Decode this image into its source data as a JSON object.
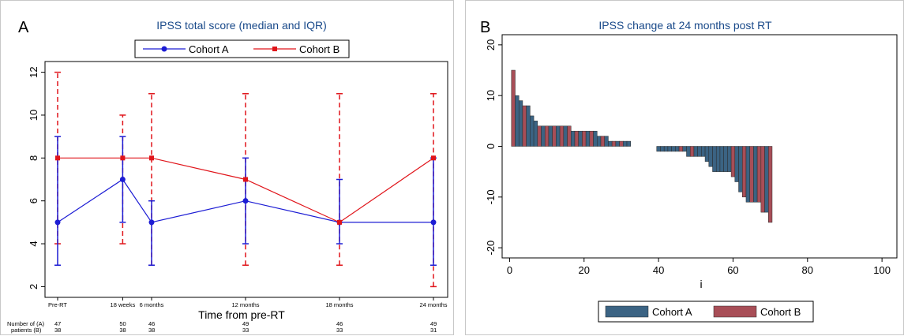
{
  "panels": [
    {
      "letter": "A",
      "chart_data": {
        "type": "line",
        "title": "IPSS total score (median and IQR)",
        "xlabel": "Time from pre-RT",
        "ylabel": "",
        "categories": [
          "Pre-RT",
          "18 weeks",
          "6 months",
          "12 months",
          "18 months",
          "24 months"
        ],
        "x": [
          0,
          18,
          26,
          52,
          78,
          104
        ],
        "ylim": [
          1.5,
          12.5
        ],
        "yticks": [
          2,
          4,
          6,
          8,
          10,
          12
        ],
        "grid": false,
        "legend_position": "top",
        "series": [
          {
            "name": "Cohort A",
            "color": "#1c1cd4",
            "marker": "circle",
            "values": [
              5,
              7,
              5,
              6,
              5,
              5
            ],
            "lower": [
              3,
              5,
              3,
              4,
              4,
              3
            ],
            "upper": [
              9,
              9,
              6,
              8,
              7,
              8
            ],
            "n": [
              47,
              50,
              46,
              49,
              46,
              49
            ]
          },
          {
            "name": "Cohort B",
            "color": "#e0141a",
            "marker": "square",
            "values": [
              8,
              8,
              8,
              7,
              5,
              8
            ],
            "lower": [
              4,
              4,
              3,
              3,
              3,
              2
            ],
            "upper": [
              12,
              10,
              11,
              11,
              11,
              11
            ],
            "n": [
              38,
              38,
              38,
              33,
              33,
              31
            ]
          }
        ],
        "table_label_1": "Number of (A)",
        "table_label_2": "patients (B)"
      }
    },
    {
      "letter": "B",
      "chart_data": {
        "type": "bar",
        "title": "IPSS change at 24 months post RT",
        "xlabel": "i",
        "ylabel": "",
        "xlim": [
          -2,
          104
        ],
        "ylim": [
          -22,
          22
        ],
        "xticks": [
          0,
          20,
          40,
          60,
          80,
          100
        ],
        "yticks": [
          -20,
          -10,
          0,
          10,
          20
        ],
        "grid": false,
        "legend_position": "bottom",
        "series_names": [
          "Cohort A",
          "Cohort B"
        ],
        "colors": [
          "#3b6383",
          "#a84e57"
        ],
        "bars": [
          {
            "i": 1,
            "v": 15,
            "c": 1
          },
          {
            "i": 2,
            "v": 10,
            "c": 0
          },
          {
            "i": 3,
            "v": 9,
            "c": 0
          },
          {
            "i": 4,
            "v": 8,
            "c": 1
          },
          {
            "i": 5,
            "v": 8,
            "c": 0
          },
          {
            "i": 6,
            "v": 6,
            "c": 0
          },
          {
            "i": 7,
            "v": 5,
            "c": 0
          },
          {
            "i": 8,
            "v": 4,
            "c": 1
          },
          {
            "i": 9,
            "v": 4,
            "c": 0
          },
          {
            "i": 10,
            "v": 4,
            "c": 1
          },
          {
            "i": 11,
            "v": 4,
            "c": 0
          },
          {
            "i": 12,
            "v": 4,
            "c": 1
          },
          {
            "i": 13,
            "v": 4,
            "c": 0
          },
          {
            "i": 14,
            "v": 4,
            "c": 1
          },
          {
            "i": 15,
            "v": 4,
            "c": 0
          },
          {
            "i": 16,
            "v": 4,
            "c": 1
          },
          {
            "i": 17,
            "v": 3,
            "c": 0
          },
          {
            "i": 18,
            "v": 3,
            "c": 1
          },
          {
            "i": 19,
            "v": 3,
            "c": 0
          },
          {
            "i": 20,
            "v": 3,
            "c": 1
          },
          {
            "i": 21,
            "v": 3,
            "c": 0
          },
          {
            "i": 22,
            "v": 3,
            "c": 1
          },
          {
            "i": 23,
            "v": 3,
            "c": 0
          },
          {
            "i": 24,
            "v": 2,
            "c": 0
          },
          {
            "i": 25,
            "v": 2,
            "c": 1
          },
          {
            "i": 26,
            "v": 2,
            "c": 0
          },
          {
            "i": 27,
            "v": 1,
            "c": 0
          },
          {
            "i": 28,
            "v": 1,
            "c": 1
          },
          {
            "i": 29,
            "v": 1,
            "c": 0
          },
          {
            "i": 30,
            "v": 1,
            "c": 1
          },
          {
            "i": 31,
            "v": 1,
            "c": 0
          },
          {
            "i": 32,
            "v": 1,
            "c": 0
          },
          {
            "i": 40,
            "v": -1,
            "c": 0
          },
          {
            "i": 41,
            "v": -1,
            "c": 0
          },
          {
            "i": 42,
            "v": -1,
            "c": 0
          },
          {
            "i": 43,
            "v": -1,
            "c": 0
          },
          {
            "i": 44,
            "v": -1,
            "c": 0
          },
          {
            "i": 45,
            "v": -1,
            "c": 0
          },
          {
            "i": 46,
            "v": -1,
            "c": 1
          },
          {
            "i": 47,
            "v": -1,
            "c": 0
          },
          {
            "i": 48,
            "v": -2,
            "c": 0
          },
          {
            "i": 49,
            "v": -2,
            "c": 1
          },
          {
            "i": 50,
            "v": -2,
            "c": 0
          },
          {
            "i": 51,
            "v": -2,
            "c": 0
          },
          {
            "i": 52,
            "v": -2,
            "c": 0
          },
          {
            "i": 53,
            "v": -3,
            "c": 0
          },
          {
            "i": 54,
            "v": -4,
            "c": 0
          },
          {
            "i": 55,
            "v": -5,
            "c": 0
          },
          {
            "i": 56,
            "v": -5,
            "c": 0
          },
          {
            "i": 57,
            "v": -5,
            "c": 0
          },
          {
            "i": 58,
            "v": -5,
            "c": 0
          },
          {
            "i": 59,
            "v": -5,
            "c": 0
          },
          {
            "i": 60,
            "v": -6,
            "c": 1
          },
          {
            "i": 61,
            "v": -7,
            "c": 0
          },
          {
            "i": 62,
            "v": -9,
            "c": 0
          },
          {
            "i": 63,
            "v": -10,
            "c": 1
          },
          {
            "i": 64,
            "v": -11,
            "c": 0
          },
          {
            "i": 65,
            "v": -11,
            "c": 1
          },
          {
            "i": 66,
            "v": -11,
            "c": 0
          },
          {
            "i": 67,
            "v": -11,
            "c": 1
          },
          {
            "i": 68,
            "v": -13,
            "c": 1
          },
          {
            "i": 69,
            "v": -13,
            "c": 0
          },
          {
            "i": 70,
            "v": -15,
            "c": 1
          }
        ]
      }
    }
  ]
}
